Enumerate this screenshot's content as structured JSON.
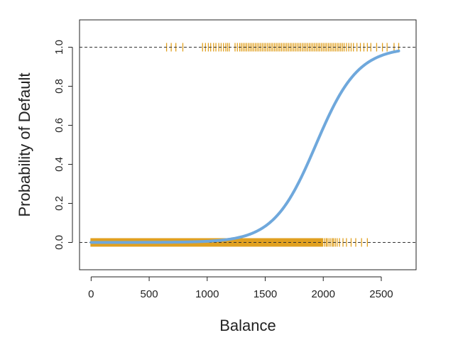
{
  "chart_data": {
    "type": "scatter",
    "title": "",
    "xlabel": "Balance",
    "ylabel": "Probability of Default",
    "xlim": [
      -100,
      2800
    ],
    "ylim": [
      -0.14,
      1.14
    ],
    "x_ticks": [
      {
        "value": 0,
        "label": "0"
      },
      {
        "value": 500,
        "label": "500"
      },
      {
        "value": 1000,
        "label": "1000"
      },
      {
        "value": 1500,
        "label": "1500"
      },
      {
        "value": 2000,
        "label": "2000"
      },
      {
        "value": 2500,
        "label": "2500"
      }
    ],
    "y_ticks": [
      {
        "value": 0.0,
        "label": "0.0"
      },
      {
        "value": 0.2,
        "label": "0.2"
      },
      {
        "value": 0.4,
        "label": "0.4"
      },
      {
        "value": 0.6,
        "label": "0.6"
      },
      {
        "value": 0.8,
        "label": "0.8"
      },
      {
        "value": 1.0,
        "label": "1.0"
      }
    ],
    "reference_lines": [
      {
        "y": 0.0,
        "style": "dashed"
      },
      {
        "y": 1.0,
        "style": "dashed"
      }
    ],
    "series": [
      {
        "kind": "rug",
        "y": 1.0,
        "marker": "|",
        "color": "#E0A020",
        "x": [
          650,
          690,
          730,
          790,
          960,
          985,
          1010,
          1030,
          1055,
          1075,
          1100,
          1120,
          1140,
          1160,
          1175,
          1190,
          1240,
          1260,
          1280,
          1295,
          1310,
          1325,
          1340,
          1355,
          1370,
          1385,
          1400,
          1415,
          1430,
          1445,
          1460,
          1475,
          1490,
          1505,
          1520,
          1535,
          1550,
          1565,
          1580,
          1595,
          1610,
          1625,
          1640,
          1655,
          1670,
          1685,
          1700,
          1715,
          1730,
          1745,
          1760,
          1775,
          1790,
          1805,
          1820,
          1835,
          1850,
          1865,
          1880,
          1895,
          1910,
          1925,
          1940,
          1955,
          1970,
          1985,
          2000,
          2015,
          2030,
          2045,
          2060,
          2075,
          2090,
          2105,
          2120,
          2135,
          2150,
          2165,
          2180,
          2200,
          2220,
          2240,
          2260,
          2290,
          2320,
          2350,
          2380,
          2410,
          2460,
          2510,
          2550,
          2610,
          2650
        ]
      },
      {
        "kind": "rug",
        "y": 0.0,
        "marker": "|",
        "color": "#E0A020",
        "dense_range": [
          0,
          1990
        ],
        "x": [
          1995,
          2010,
          2025,
          2035,
          2050,
          2065,
          2080,
          2090,
          2105,
          2120,
          2140,
          2170,
          2200,
          2240,
          2280,
          2330,
          2380
        ]
      },
      {
        "kind": "curve",
        "model": "logistic",
        "color": "#6FA8DC",
        "intercept": -10.65,
        "slope": 0.0055,
        "x_range": [
          0,
          2654
        ]
      }
    ]
  }
}
